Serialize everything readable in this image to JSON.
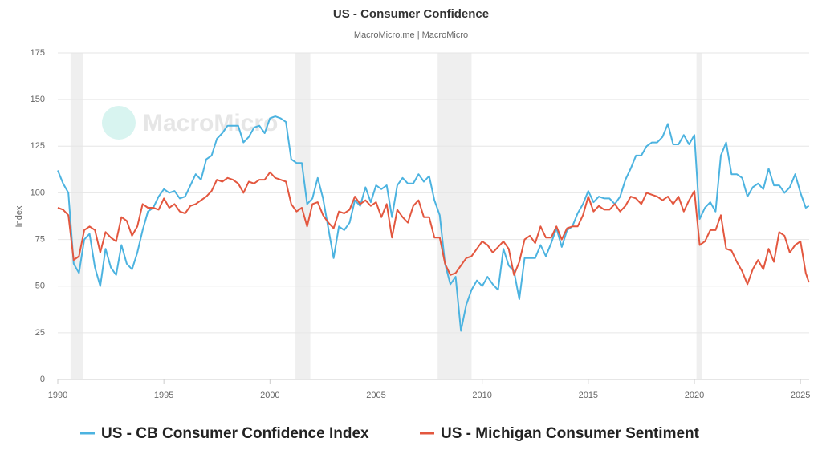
{
  "chart_data": {
    "type": "line",
    "title": "US - Consumer Confidence",
    "subtitle": "MacroMicro.me | MacroMicro",
    "watermark": "MacroMicro",
    "y_label": "Index",
    "x": [
      1990,
      1990.25,
      1990.5,
      1990.75,
      1991,
      1991.25,
      1991.5,
      1991.75,
      1992,
      1992.25,
      1992.5,
      1992.75,
      1993,
      1993.25,
      1993.5,
      1993.75,
      1994,
      1994.25,
      1994.5,
      1994.75,
      1995,
      1995.25,
      1995.5,
      1995.75,
      1996,
      1996.25,
      1996.5,
      1996.75,
      1997,
      1997.25,
      1997.5,
      1997.75,
      1998,
      1998.25,
      1998.5,
      1998.75,
      1999,
      1999.25,
      1999.5,
      1999.75,
      2000,
      2000.25,
      2000.5,
      2000.75,
      2001,
      2001.25,
      2001.5,
      2001.75,
      2002,
      2002.25,
      2002.5,
      2002.75,
      2003,
      2003.25,
      2003.5,
      2003.75,
      2004,
      2004.25,
      2004.5,
      2004.75,
      2005,
      2005.25,
      2005.5,
      2005.75,
      2006,
      2006.25,
      2006.5,
      2006.75,
      2007,
      2007.25,
      2007.5,
      2007.75,
      2008,
      2008.25,
      2008.5,
      2008.75,
      2009,
      2009.25,
      2009.5,
      2009.75,
      2010,
      2010.25,
      2010.5,
      2010.75,
      2011,
      2011.25,
      2011.5,
      2011.75,
      2012,
      2012.25,
      2012.5,
      2012.75,
      2013,
      2013.25,
      2013.5,
      2013.75,
      2014,
      2014.25,
      2014.5,
      2014.75,
      2015,
      2015.25,
      2015.5,
      2015.75,
      2016,
      2016.25,
      2016.5,
      2016.75,
      2017,
      2017.25,
      2017.5,
      2017.75,
      2018,
      2018.25,
      2018.5,
      2018.75,
      2019,
      2019.25,
      2019.5,
      2019.75,
      2020,
      2020.25,
      2020.5,
      2020.75,
      2021,
      2021.25,
      2021.5,
      2021.75,
      2022,
      2022.25,
      2022.5,
      2022.75,
      2023,
      2023.25,
      2023.5,
      2023.75,
      2024,
      2024.25,
      2024.5,
      2024.75,
      2025,
      2025.25,
      2025.4
    ],
    "series": [
      {
        "name": "US - CB Consumer Confidence Index",
        "color": "#4cb3e0",
        "values": [
          112,
          105,
          100,
          62,
          57,
          75,
          78,
          60,
          50,
          70,
          60,
          56,
          72,
          62,
          59,
          68,
          80,
          90,
          92,
          98,
          102,
          100,
          101,
          97,
          98,
          104,
          110,
          107,
          118,
          120,
          129,
          132,
          136,
          136,
          136,
          127,
          130,
          135,
          136,
          132,
          140,
          141,
          140,
          138,
          118,
          116,
          116,
          94,
          97,
          108,
          97,
          81,
          65,
          82,
          80,
          84,
          96,
          93,
          103,
          95,
          104,
          102,
          104,
          87,
          104,
          108,
          105,
          105,
          110,
          106,
          109,
          96,
          88,
          62,
          51,
          55,
          26,
          40,
          48,
          53,
          50,
          55,
          51,
          48,
          70,
          61,
          58,
          43,
          65,
          65,
          65,
          72,
          66,
          73,
          81,
          71,
          80,
          82,
          89,
          94,
          101,
          95,
          98,
          97,
          97,
          94,
          98,
          107,
          113,
          120,
          120,
          125,
          127,
          127,
          130,
          137,
          126,
          126,
          131,
          126,
          131,
          86,
          92,
          95,
          90,
          120,
          127,
          110,
          110,
          108,
          98,
          103,
          105,
          102,
          113,
          104,
          104,
          100,
          103,
          110,
          100,
          92,
          93
        ]
      },
      {
        "name": "US - Michigan Consumer Sentiment",
        "color": "#e3573f",
        "values": [
          92,
          91,
          88,
          64,
          66,
          80,
          82,
          80,
          68,
          79,
          76,
          74,
          87,
          85,
          77,
          82,
          94,
          92,
          92,
          91,
          97,
          92,
          94,
          90,
          89,
          93,
          94,
          96,
          98,
          101,
          107,
          106,
          108,
          107,
          105,
          100,
          106,
          105,
          107,
          107,
          111,
          108,
          107,
          106,
          94,
          90,
          92,
          82,
          94,
          95,
          88,
          84,
          81,
          90,
          89,
          91,
          98,
          94,
          96,
          93,
          95,
          87,
          94,
          76,
          91,
          87,
          84,
          93,
          96,
          87,
          87,
          76,
          76,
          62,
          56,
          57,
          61,
          65,
          66,
          70,
          74,
          72,
          68,
          71,
          74,
          70,
          56,
          63,
          75,
          77,
          73,
          82,
          76,
          76,
          82,
          75,
          81,
          82,
          82,
          88,
          98,
          90,
          93,
          91,
          91,
          94,
          90,
          93,
          98,
          97,
          94,
          100,
          99,
          98,
          96,
          98,
          94,
          98,
          90,
          96,
          101,
          72,
          74,
          80,
          80,
          88,
          70,
          69,
          63,
          58,
          51,
          59,
          64,
          59,
          70,
          63,
          79,
          77,
          68,
          72,
          74,
          57,
          52
        ]
      }
    ],
    "recessions": [
      [
        1990.6,
        1991.2
      ],
      [
        2001.2,
        2001.9
      ],
      [
        2007.9,
        2009.5
      ],
      [
        2020.1,
        2020.35
      ]
    ],
    "xlim": [
      1990,
      2025.41
    ],
    "xticks": [
      1990,
      1995,
      2000,
      2005,
      2010,
      2015,
      2020,
      2025
    ],
    "ylim": [
      0,
      175
    ],
    "yticks": [
      0,
      25,
      50,
      75,
      100,
      125,
      150,
      175
    ],
    "grid": true,
    "legend": "bottom"
  }
}
